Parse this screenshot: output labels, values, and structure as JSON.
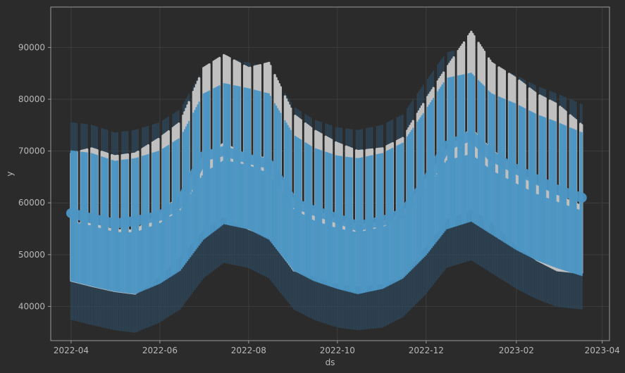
{
  "chart_data": {
    "type": "line",
    "title": "",
    "xlabel": "ds",
    "ylabel": "y",
    "x_axis_type": "date",
    "xlim": [
      "2022-03-18",
      "2023-04-06"
    ],
    "ylim": [
      33400,
      97800
    ],
    "x_ticks": [
      "2022-04",
      "2022-06",
      "2022-08",
      "2022-10",
      "2022-12",
      "2023-02",
      "2023-04"
    ],
    "y_ticks": [
      40000,
      50000,
      60000,
      70000,
      80000,
      90000
    ],
    "grid": true,
    "legend": "none",
    "series": [
      {
        "kind": "observed",
        "style": "scatter",
        "color": "#c0c0c0",
        "x": [
          "2022-04-01",
          "2022-04-15",
          "2022-05-01",
          "2022-05-15",
          "2022-06-01",
          "2022-06-15",
          "2022-07-01",
          "2022-07-15",
          "2022-08-01",
          "2022-08-15",
          "2022-09-01",
          "2022-09-15",
          "2022-10-01",
          "2022-10-15",
          "2022-11-01",
          "2022-11-15",
          "2022-12-01",
          "2022-12-15",
          "2023-01-01",
          "2023-01-15",
          "2023-02-01",
          "2023-02-15",
          "2023-03-01",
          "2023-03-18"
        ],
        "high": [
          69500,
          70500,
          69000,
          69500,
          72500,
          75500,
          86000,
          88500,
          86000,
          87000,
          77000,
          74000,
          71500,
          70000,
          70500,
          72500,
          80000,
          86000,
          93000,
          87000,
          84000,
          81000,
          79000,
          75000
        ],
        "low": [
          45000,
          44000,
          43000,
          42500,
          46000,
          50000,
          55000,
          57500,
          55000,
          53500,
          47000,
          46000,
          44500,
          44000,
          44500,
          46000,
          52000,
          57000,
          59000,
          56500,
          52000,
          49000,
          47000,
          46500
        ]
      },
      {
        "kind": "forecast",
        "style": "band",
        "color": "#4d96c4",
        "x": [
          "2022-04-01",
          "2022-04-15",
          "2022-05-01",
          "2022-05-15",
          "2022-06-01",
          "2022-06-15",
          "2022-07-01",
          "2022-07-15",
          "2022-08-01",
          "2022-08-15",
          "2022-09-01",
          "2022-09-15",
          "2022-10-01",
          "2022-10-15",
          "2022-11-01",
          "2022-11-15",
          "2022-12-01",
          "2022-12-15",
          "2023-01-01",
          "2023-01-15",
          "2023-02-01",
          "2023-02-15",
          "2023-03-01",
          "2023-03-18"
        ],
        "upper": [
          70000,
          69500,
          68000,
          68500,
          70000,
          72500,
          81000,
          83000,
          82000,
          81000,
          73000,
          70500,
          69000,
          68500,
          69500,
          71500,
          78000,
          84000,
          85000,
          81000,
          79000,
          77000,
          75500,
          73500
        ],
        "lower": [
          45000,
          44000,
          43000,
          42500,
          44500,
          47000,
          53000,
          56000,
          55000,
          53000,
          47000,
          45000,
          43500,
          42500,
          43500,
          45500,
          50000,
          55000,
          56500,
          54000,
          51000,
          49000,
          47500,
          46000
        ],
        "trend": [
          58000,
          57000,
          56000,
          56500,
          57500,
          60000,
          69000,
          70000,
          68500,
          67500,
          60000,
          58500,
          57000,
          55500,
          56500,
          58000,
          64000,
          71000,
          73000,
          69000,
          66500,
          64500,
          62500,
          61000
        ]
      },
      {
        "kind": "uncertainty",
        "style": "band",
        "color": "#2e4a60",
        "x": [
          "2022-04-01",
          "2022-04-15",
          "2022-05-01",
          "2022-05-15",
          "2022-06-01",
          "2022-06-15",
          "2022-07-01",
          "2022-07-15",
          "2022-08-01",
          "2022-08-15",
          "2022-09-01",
          "2022-09-15",
          "2022-10-01",
          "2022-10-15",
          "2022-11-01",
          "2022-11-15",
          "2022-12-01",
          "2022-12-15",
          "2023-01-01",
          "2023-01-15",
          "2023-02-01",
          "2023-02-15",
          "2023-03-01",
          "2023-03-18"
        ],
        "upper": [
          75500,
          75000,
          73500,
          74000,
          75500,
          78000,
          86000,
          88000,
          87000,
          86000,
          78500,
          76000,
          74500,
          74000,
          75000,
          77000,
          83500,
          89000,
          90000,
          86500,
          84500,
          82500,
          81000,
          79000
        ],
        "lower": [
          37500,
          36500,
          35500,
          35000,
          37000,
          39500,
          45500,
          48500,
          47500,
          45500,
          39500,
          37500,
          36000,
          35500,
          36000,
          38000,
          42500,
          47500,
          49000,
          46500,
          43500,
          41500,
          40000,
          39500
        ]
      }
    ]
  }
}
